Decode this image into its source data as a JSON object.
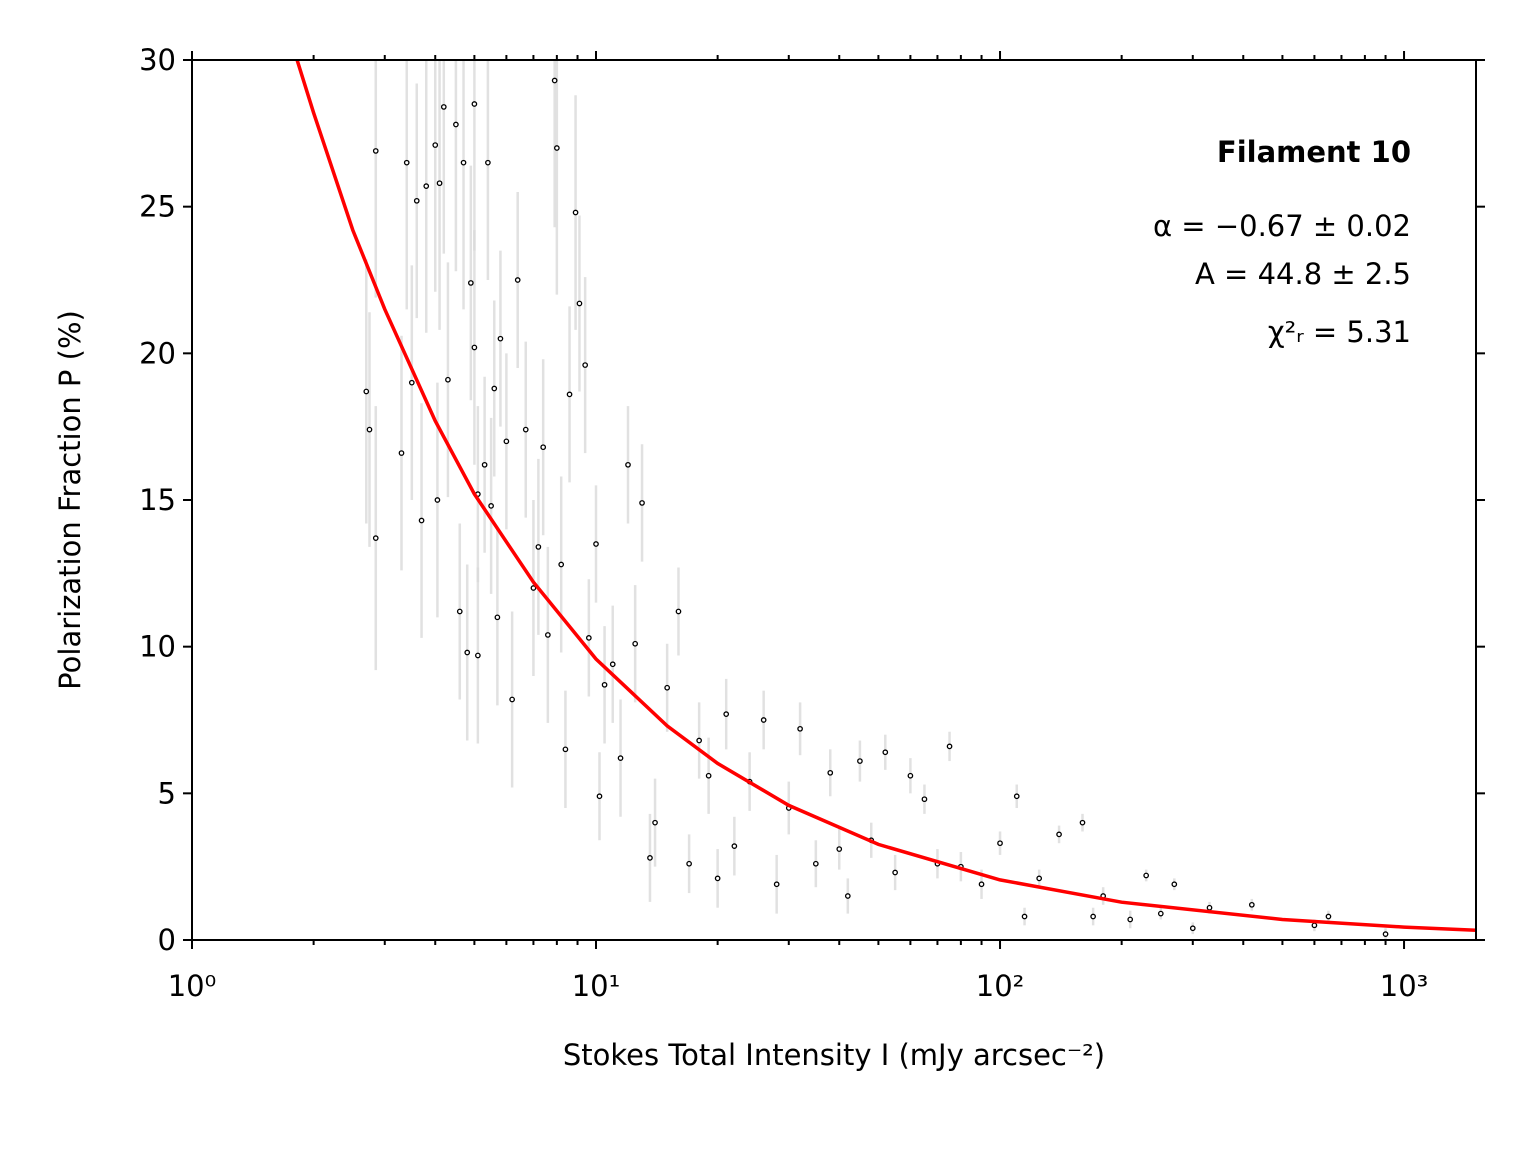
{
  "chart_data": {
    "type": "scatter",
    "xlabel": "Stokes Total Intensity I (mJy arcsec⁻²)",
    "ylabel": "Polarization Fraction P (%)",
    "xscale": "log",
    "xlim": [
      1,
      1507
    ],
    "ylim": [
      0,
      30
    ],
    "xticks": [
      {
        "value": 1,
        "label": "10⁰"
      },
      {
        "value": 10,
        "label": "10¹"
      },
      {
        "value": 100,
        "label": "10²"
      },
      {
        "value": 1000,
        "label": "10³"
      }
    ],
    "xminor_ticks": [
      2,
      3,
      4,
      5,
      6,
      7,
      8,
      9,
      20,
      30,
      40,
      50,
      60,
      70,
      80,
      90,
      200,
      300,
      400,
      500,
      600,
      700,
      800,
      900
    ],
    "yticks": [
      0,
      5,
      10,
      15,
      20,
      25,
      30
    ],
    "annotations": [
      "Filament 10",
      "α = −0.67 ± 0.02",
      "A = 44.8 ± 2.5",
      "χ²ᵣ = 5.31"
    ],
    "series": [
      {
        "type": "errorbar",
        "color": "#000000",
        "error_color": "#d9d9d9",
        "x": [
          2.7,
          2.75,
          2.85,
          2.85,
          3.3,
          3.4,
          3.5,
          3.6,
          3.7,
          3.8,
          4.0,
          4.05,
          4.1,
          4.2,
          4.3,
          4.5,
          4.6,
          4.7,
          4.8,
          4.9,
          5.0,
          5.0,
          5.1,
          5.1,
          5.3,
          5.4,
          5.5,
          5.6,
          5.7,
          5.8,
          6.0,
          6.2,
          6.4,
          6.7,
          7.0,
          7.2,
          7.4,
          7.6,
          7.9,
          8.0,
          8.2,
          8.4,
          8.6,
          8.9,
          9.1,
          9.4,
          9.6,
          10,
          10.2,
          10.5,
          11,
          11.5,
          12,
          12.5,
          13,
          13.6,
          14,
          15,
          16,
          17,
          18,
          19,
          20,
          21,
          22,
          24,
          26,
          28,
          30,
          32,
          35,
          38,
          40,
          42,
          45,
          48,
          52,
          55,
          60,
          65,
          70,
          75,
          80,
          90,
          100,
          110,
          115,
          125,
          140,
          160,
          170,
          180,
          210,
          230,
          250,
          270,
          300,
          330,
          420,
          600,
          650,
          900
        ],
        "values": [
          18.7,
          17.4,
          13.7,
          26.9,
          16.6,
          26.5,
          19,
          25.2,
          14.3,
          25.7,
          27.1,
          15,
          25.8,
          28.4,
          19.1,
          27.8,
          11.2,
          26.5,
          9.8,
          22.4,
          28.5,
          20.2,
          15.2,
          9.7,
          16.2,
          26.5,
          14.8,
          18.8,
          11,
          20.5,
          17,
          8.2,
          22.5,
          17.4,
          12,
          13.4,
          16.8,
          10.4,
          29.3,
          27,
          12.8,
          6.5,
          18.6,
          24.8,
          21.7,
          19.6,
          10.3,
          13.5,
          4.9,
          8.7,
          9.4,
          6.2,
          16.2,
          10.1,
          14.9,
          2.8,
          4,
          8.6,
          11.2,
          2.6,
          6.8,
          5.6,
          2.1,
          7.7,
          3.2,
          5.4,
          7.5,
          1.9,
          4.5,
          7.2,
          2.6,
          5.7,
          3.1,
          1.5,
          6.1,
          3.4,
          6.4,
          2.3,
          5.6,
          4.8,
          2.6,
          6.6,
          2.5,
          1.9,
          3.3,
          4.9,
          0.8,
          2.1,
          3.6,
          4.0,
          0.8,
          1.5,
          0.7,
          2.2,
          0.9,
          1.9,
          0.4,
          1.1,
          1.2,
          0.5,
          0.8,
          0.2
        ],
        "errors": [
          4.5,
          4,
          4.5,
          5,
          4,
          5,
          4,
          4,
          4,
          5,
          5,
          4,
          5,
          5,
          4,
          5,
          3,
          5,
          3,
          4,
          5,
          4,
          3,
          3,
          3,
          4,
          3,
          3,
          3,
          3,
          3,
          3,
          3,
          3,
          3,
          3,
          3,
          3,
          5,
          5,
          3,
          2,
          3,
          4,
          3,
          3,
          2,
          2,
          1.5,
          2,
          2,
          2,
          2,
          2,
          2,
          1.5,
          1.5,
          1.5,
          1.5,
          1,
          1.3,
          1.3,
          1,
          1.2,
          1,
          1,
          1,
          1,
          0.9,
          0.9,
          0.8,
          0.8,
          0.7,
          0.6,
          0.7,
          0.6,
          0.6,
          0.6,
          0.6,
          0.5,
          0.5,
          0.5,
          0.5,
          0.5,
          0.4,
          0.4,
          0.3,
          0.3,
          0.3,
          0.3,
          0.3,
          0.3,
          0.3,
          0.2,
          0.2,
          0.2,
          0.2,
          0.2,
          0.2,
          0.2,
          0.2,
          0.2
        ]
      },
      {
        "type": "line",
        "color": "#ff0000",
        "x": [
          1.82,
          2,
          2.5,
          3,
          4,
          5,
          7,
          10,
          15,
          20,
          30,
          50,
          100,
          200,
          500,
          1000,
          1507
        ],
        "values": [
          30.0,
          28.2,
          24.2,
          21.5,
          17.7,
          15.2,
          12.2,
          9.58,
          7.3,
          6.02,
          4.59,
          3.26,
          2.05,
          1.29,
          0.7,
          0.44,
          0.33
        ]
      }
    ]
  }
}
